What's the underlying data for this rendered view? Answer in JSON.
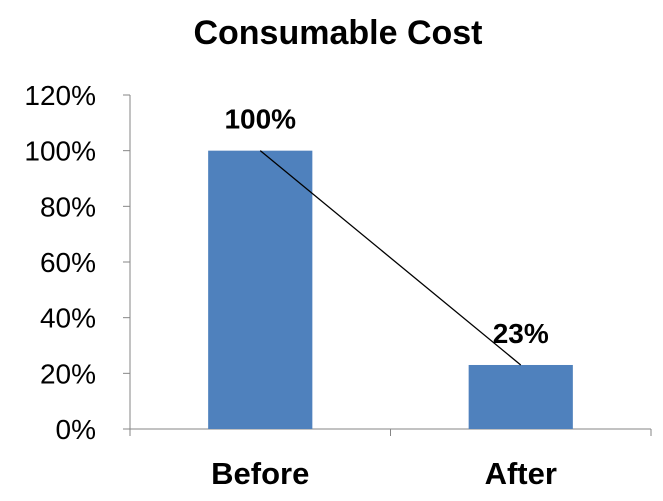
{
  "chart_data": {
    "type": "bar",
    "title": "Consumable Cost",
    "categories": [
      "Before",
      "After"
    ],
    "values": [
      100,
      23
    ],
    "data_labels": [
      "100%",
      "23%"
    ],
    "ylim": [
      0,
      120
    ],
    "y_ticks": [
      0,
      20,
      40,
      60,
      80,
      100,
      120
    ],
    "y_tick_labels": [
      "0%",
      "20%",
      "40%",
      "60%",
      "80%",
      "100%",
      "120%"
    ],
    "xlabel": "",
    "ylabel": "",
    "grid": false,
    "legend": "none",
    "bar_color": "#4F81BD",
    "trendline": {
      "type": "linear",
      "color": "#000000"
    }
  }
}
